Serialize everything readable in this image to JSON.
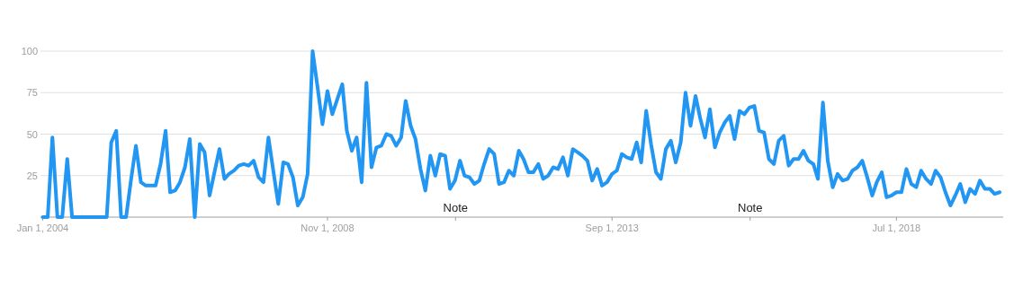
{
  "chart_data": {
    "type": "line",
    "x": [
      "2004-01",
      "2004-02",
      "2004-03",
      "2004-04",
      "2004-05",
      "2004-06",
      "2004-07",
      "2004-08",
      "2004-09",
      "2004-10",
      "2004-11",
      "2004-12",
      "2005-01",
      "2005-02",
      "2005-03",
      "2005-04",
      "2005-05",
      "2005-06",
      "2005-07",
      "2005-08",
      "2005-09",
      "2005-10",
      "2005-11",
      "2005-12",
      "2006-01",
      "2006-02",
      "2006-03",
      "2006-04",
      "2006-05",
      "2006-06",
      "2006-07",
      "2006-08",
      "2006-09",
      "2006-10",
      "2006-11",
      "2006-12",
      "2007-01",
      "2007-02",
      "2007-03",
      "2007-04",
      "2007-05",
      "2007-06",
      "2007-07",
      "2007-08",
      "2007-09",
      "2007-10",
      "2007-11",
      "2007-12",
      "2008-01",
      "2008-02",
      "2008-03",
      "2008-04",
      "2008-05",
      "2008-06",
      "2008-07",
      "2008-08",
      "2008-09",
      "2008-10",
      "2008-11",
      "2008-12",
      "2009-01",
      "2009-02",
      "2009-03",
      "2009-04",
      "2009-05",
      "2009-06",
      "2009-07",
      "2009-08",
      "2009-09",
      "2009-10",
      "2009-11",
      "2009-12",
      "2010-01",
      "2010-02",
      "2010-03",
      "2010-04",
      "2010-05",
      "2010-06",
      "2010-07",
      "2010-08",
      "2010-09",
      "2010-10",
      "2010-11",
      "2010-12",
      "2011-01",
      "2011-02",
      "2011-03",
      "2011-04",
      "2011-05",
      "2011-06",
      "2011-07",
      "2011-08",
      "2011-09",
      "2011-10",
      "2011-11",
      "2011-12",
      "2012-01",
      "2012-02",
      "2012-03",
      "2012-04",
      "2012-05",
      "2012-06",
      "2012-07",
      "2012-08",
      "2012-09",
      "2012-10",
      "2012-11",
      "2012-12",
      "2013-01",
      "2013-02",
      "2013-03",
      "2013-04",
      "2013-05",
      "2013-06",
      "2013-07",
      "2013-08",
      "2013-09",
      "2013-10",
      "2013-11",
      "2013-12",
      "2014-01",
      "2014-02",
      "2014-03",
      "2014-04",
      "2014-05",
      "2014-06",
      "2014-07",
      "2014-08",
      "2014-09",
      "2014-10",
      "2014-11",
      "2014-12",
      "2015-01",
      "2015-02",
      "2015-03",
      "2015-04",
      "2015-05",
      "2015-06",
      "2015-07",
      "2015-08",
      "2015-09",
      "2015-10",
      "2015-11",
      "2015-12",
      "2016-01",
      "2016-02",
      "2016-03",
      "2016-04",
      "2016-05",
      "2016-06",
      "2016-07",
      "2016-08",
      "2016-09",
      "2016-10",
      "2016-11",
      "2016-12",
      "2017-01",
      "2017-02",
      "2017-03",
      "2017-04",
      "2017-05",
      "2017-06",
      "2017-07",
      "2017-08",
      "2017-09",
      "2017-10",
      "2017-11",
      "2017-12",
      "2018-01",
      "2018-02",
      "2018-03",
      "2018-04",
      "2018-05",
      "2018-06",
      "2018-07",
      "2018-08",
      "2018-09",
      "2018-10",
      "2018-11",
      "2018-12",
      "2019-01",
      "2019-02",
      "2019-03",
      "2019-04",
      "2019-05",
      "2019-06",
      "2019-07",
      "2019-08",
      "2019-09",
      "2019-10",
      "2019-11",
      "2019-12",
      "2020-01",
      "2020-02",
      "2020-03",
      "2020-04"
    ],
    "series": [
      {
        "color": "#2196f3",
        "values": [
          0,
          0,
          48,
          0,
          0,
          35,
          0,
          0,
          0,
          0,
          0,
          0,
          0,
          0,
          45,
          52,
          0,
          0,
          22,
          43,
          21,
          19,
          19,
          19,
          32,
          52,
          15,
          16,
          21,
          30,
          47,
          0,
          44,
          39,
          13,
          27,
          41,
          23,
          26,
          28,
          31,
          32,
          31,
          34,
          24,
          21,
          48,
          28,
          8,
          33,
          32,
          24,
          7,
          12,
          26,
          100,
          78,
          56,
          76,
          62,
          71,
          80,
          52,
          40,
          48,
          21,
          81,
          30,
          42,
          43,
          50,
          49,
          43,
          48,
          70,
          55,
          47,
          29,
          16,
          37,
          25,
          38,
          37,
          17,
          22,
          34,
          25,
          24,
          20,
          22,
          32,
          41,
          38,
          20,
          21,
          28,
          25,
          40,
          35,
          27,
          27,
          32,
          23,
          25,
          30,
          29,
          36,
          25,
          41,
          39,
          37,
          34,
          22,
          29,
          19,
          21,
          26,
          28,
          38,
          36,
          35,
          45,
          33,
          64,
          44,
          27,
          23,
          41,
          46,
          33,
          45,
          75,
          55,
          73,
          60,
          48,
          65,
          42,
          51,
          57,
          61,
          47,
          64,
          62,
          66,
          67,
          52,
          51,
          35,
          32,
          46,
          49,
          31,
          35,
          35,
          40,
          34,
          32,
          23,
          69,
          34,
          18,
          26,
          22,
          23,
          28,
          30,
          34,
          24,
          13,
          21,
          27,
          12,
          13,
          15,
          15,
          29,
          20,
          18,
          28,
          23,
          20,
          28,
          24,
          15,
          7,
          13,
          20,
          9,
          17,
          14,
          22,
          17,
          17,
          14,
          15
        ]
      }
    ],
    "xlim": [
      "2004-01",
      "2020-04"
    ],
    "xticks": [
      {
        "value": "2004-01",
        "label": "Jan 1, 2004"
      },
      {
        "value": "2008-11",
        "label": "Nov 1, 2008"
      },
      {
        "value": "2013-09",
        "label": "Sep 1, 2013"
      },
      {
        "value": "2018-07",
        "label": "Jul 1, 2018"
      }
    ],
    "ylim": [
      0,
      100
    ],
    "yticks": [
      {
        "value": 0,
        "label": null
      },
      25,
      50,
      75,
      100
    ],
    "grid": "y",
    "annotations": [
      "Note",
      "Note"
    ]
  }
}
